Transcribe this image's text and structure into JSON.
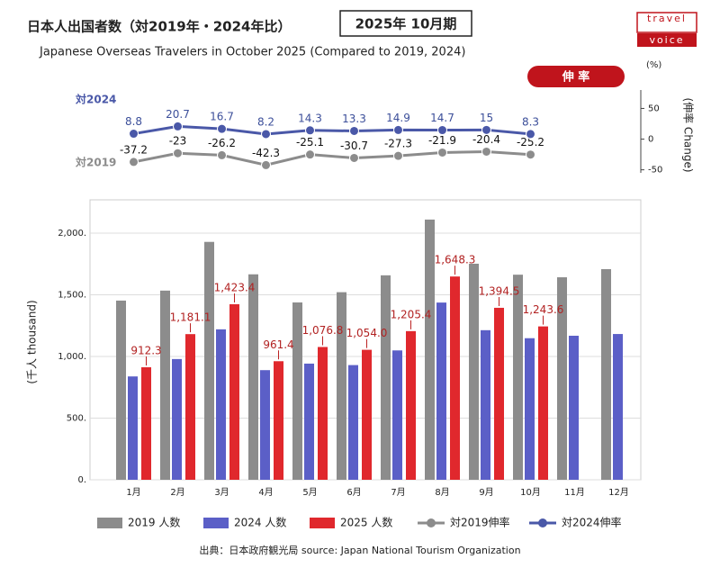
{
  "logo": [
    "travel",
    "voice"
  ],
  "chart_data": [
    {
      "type": "bar",
      "title": "日本人出国者数（対2019年・2024年比）",
      "period": "2025年 10月期",
      "subtitle": "Japanese Overseas Travelers in October 2025 (Compared to 2019, 2024)",
      "y_label": "(千人 thousand)",
      "source": "出典：日本政府観光局  source: Japan National Tourism Organization",
      "categories": [
        "1月",
        "2月",
        "3月",
        "4月",
        "5月",
        "6月",
        "7月",
        "8月",
        "9月",
        "10月",
        "11月",
        "12月"
      ],
      "series": [
        {
          "name": "2019 人数",
          "color": "#8c8c8c",
          "values": [
            1453,
            1534,
            1929,
            1666,
            1438,
            1521,
            1658,
            2110,
            1752,
            1663,
            1642,
            1708
          ]
        },
        {
          "name": "2024 人数",
          "color": "#5b5fc7",
          "values": [
            838,
            979,
            1220,
            889,
            942,
            930,
            1049,
            1437,
            1213,
            1148,
            1168,
            1182
          ]
        },
        {
          "name": "2025 人数",
          "color": "#e0282d",
          "values": [
            912.3,
            1181.1,
            1423.4,
            961.4,
            1076.8,
            1054.0,
            1205.4,
            1648.3,
            1394.5,
            1243.6,
            null,
            null
          ],
          "value_labels": [
            "912.3",
            "1,181.1",
            "1,423.4",
            "961.4",
            "1,076.8",
            "1,054.0",
            "1,205.4",
            "1,648.3",
            "1,394.5",
            "1,243.6",
            null,
            null
          ]
        }
      ],
      "ylim": [
        0,
        2270
      ],
      "yticks": [
        {
          "value": 0,
          "label": "0."
        },
        {
          "value": 500,
          "label": "500."
        },
        {
          "value": 1000,
          "label": "1,000."
        },
        {
          "value": 1500,
          "label": "1,500."
        },
        {
          "value": 2000,
          "label": "2,000."
        }
      ],
      "grid": true
    },
    {
      "type": "line",
      "unit": "(%)",
      "badge": "伸 率",
      "y_label": "(伸率 Change)",
      "annotations": [
        "対2024",
        "対2019"
      ],
      "series": [
        {
          "name": "対2024伸率",
          "color": "#4a58a8",
          "values": [
            8.8,
            20.7,
            16.7,
            8.2,
            14.3,
            13.3,
            14.9,
            14.7,
            15.0,
            8.3,
            null,
            null
          ]
        },
        {
          "name": "対2019伸率",
          "color": "#8c8c8c",
          "values": [
            -37.2,
            -23.0,
            -26.2,
            -42.3,
            -25.1,
            -30.7,
            -27.3,
            -21.9,
            -20.4,
            -25.2,
            null,
            null
          ]
        }
      ],
      "ylim": [
        -52,
        80
      ],
      "yticks": [
        50,
        0,
        -50
      ]
    }
  ]
}
